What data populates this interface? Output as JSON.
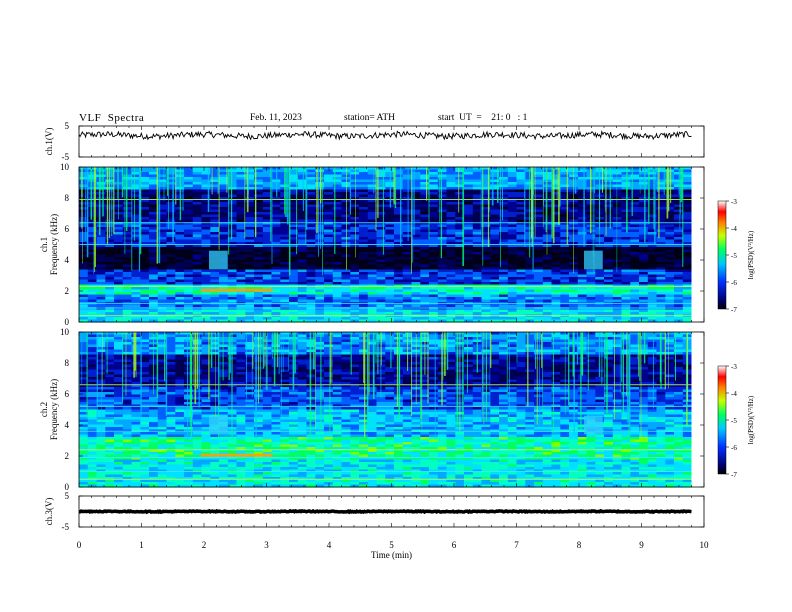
{
  "header": {
    "title": "VLF  Spectra",
    "date": "Feb. 11, 2023",
    "station": "station= ATH",
    "start": "start  UT  =    21: 0   : 1"
  },
  "chart_data": [
    {
      "type": "line",
      "panel": "ch1-waveform",
      "ylabel": "ch.1(V)",
      "ylim": [
        -5,
        5
      ],
      "y_ticks": [
        "5",
        "-5"
      ],
      "x_range_min": [
        0,
        9.8
      ],
      "signal": "noisy trace centred near +2 V"
    },
    {
      "type": "heatmap",
      "panel": "ch1-spectrogram",
      "ylabel": "ch.1\nFrequency  (kHz)",
      "ylim": [
        0,
        10
      ],
      "y_ticks": [
        "0",
        "2",
        "4",
        "6",
        "8",
        "10"
      ],
      "x_range_min": [
        0,
        9.8
      ],
      "colorbar": {
        "label": "log(PSD)(V²/Hz)",
        "range": [
          -7,
          -3
        ],
        "ticks": [
          "-3",
          "-4",
          "-5",
          "-6",
          "-7"
        ]
      }
    },
    {
      "type": "heatmap",
      "panel": "ch2-spectrogram",
      "ylabel": "ch.2\nFrequency  (kHz)",
      "ylim": [
        0,
        10
      ],
      "y_ticks": [
        "0",
        "2",
        "4",
        "6",
        "8",
        "10"
      ],
      "x_range_min": [
        0,
        9.8
      ],
      "colorbar": {
        "label": "log(PSD)(V²/Hz)",
        "range": [
          -7,
          -3
        ],
        "ticks": [
          "-3",
          "-4",
          "-5",
          "-6",
          "-7"
        ]
      }
    },
    {
      "type": "line",
      "panel": "ch3-waveform",
      "ylabel": "ch.3(V)",
      "ylim": [
        -5,
        5
      ],
      "y_ticks": [
        "5",
        "-5"
      ],
      "x_range_min": [
        0,
        9.8
      ],
      "signal": "flat trace near 0 V"
    }
  ],
  "x_axis": {
    "label": "Time  (min)",
    "range": [
      0,
      10
    ],
    "ticks": [
      "0",
      "1",
      "2",
      "3",
      "4",
      "5",
      "6",
      "7",
      "8",
      "9",
      "10"
    ]
  },
  "colors": {
    "low": "#000060",
    "mid": "#00d0ff",
    "high": "#ff0000"
  }
}
